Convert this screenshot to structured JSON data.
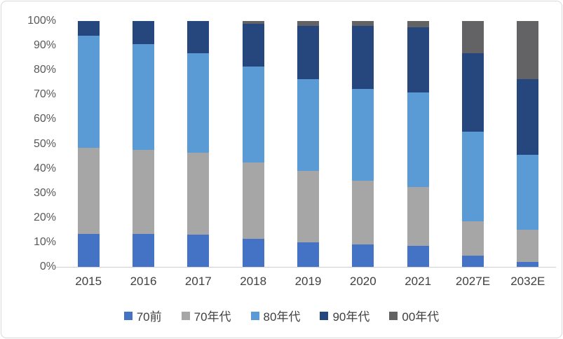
{
  "chart_data": {
    "type": "bar",
    "stacked": true,
    "percent": true,
    "title": "",
    "xlabel": "",
    "ylabel": "",
    "ylim": [
      0,
      100
    ],
    "grid": false,
    "legend_position": "bottom",
    "categories": [
      "2015",
      "2016",
      "2017",
      "2018",
      "2019",
      "2020",
      "2021",
      "2027E",
      "2032E"
    ],
    "series": [
      {
        "name": "70前",
        "color": "#4472C4",
        "values": [
          13.5,
          13.5,
          13.0,
          11.5,
          10.0,
          9.0,
          8.5,
          4.5,
          2.0
        ]
      },
      {
        "name": "70年代",
        "color": "#A6A6A6",
        "values": [
          35.0,
          34.0,
          33.5,
          31.0,
          29.0,
          26.0,
          24.0,
          14.0,
          13.0
        ]
      },
      {
        "name": "80年代",
        "color": "#5B9BD5",
        "values": [
          45.5,
          43.0,
          40.5,
          39.0,
          37.5,
          37.5,
          38.5,
          36.5,
          30.5
        ]
      },
      {
        "name": "90年代",
        "color": "#26477E",
        "values": [
          6.0,
          9.5,
          13.0,
          17.5,
          21.5,
          25.5,
          26.5,
          32.0,
          31.0
        ]
      },
      {
        "name": "00年代",
        "color": "#636366",
        "values": [
          0.0,
          0.0,
          0.0,
          1.0,
          2.0,
          2.0,
          2.5,
          13.0,
          23.5
        ]
      }
    ],
    "y_ticks": [
      "100%",
      "90%",
      "80%",
      "70%",
      "60%",
      "50%",
      "40%",
      "30%",
      "20%",
      "10%",
      "0%"
    ]
  }
}
